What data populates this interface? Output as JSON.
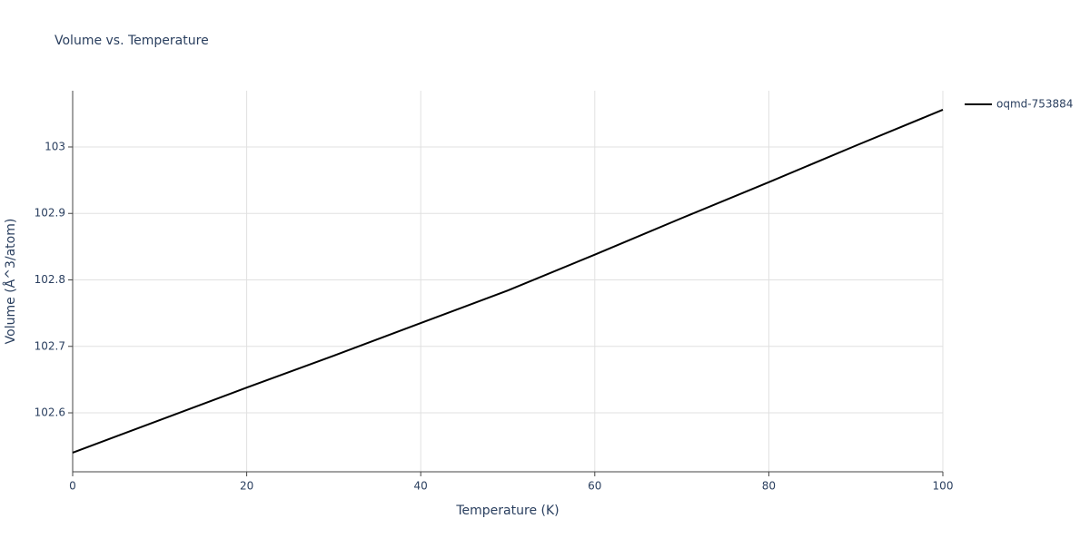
{
  "chart_data": {
    "type": "line",
    "title": "Volume vs. Temperature",
    "x_label": "Temperature (K)",
    "y_label": "Volume (Å^3/atom)",
    "x": [
      0,
      10,
      20,
      30,
      40,
      50,
      60,
      70,
      80,
      90,
      100
    ],
    "series": [
      {
        "name": "oqmd-753884",
        "color": "#000000",
        "values": [
          102.54,
          102.589,
          102.638,
          102.686,
          102.735,
          102.784,
          102.838,
          102.893,
          102.947,
          103.002,
          103.056
        ]
      }
    ],
    "xlim": [
      0,
      100
    ],
    "xticks": [
      0,
      20,
      40,
      60,
      80,
      100
    ],
    "ylim": [
      102.5113,
      103.0846
    ],
    "yticks": [
      {
        "value": 102.6,
        "label": "102.6"
      },
      {
        "value": 102.7,
        "label": "102.7"
      },
      {
        "value": 102.8,
        "label": "102.8"
      },
      {
        "value": 102.9,
        "label": "102.9"
      },
      {
        "value": 103,
        "label": "103"
      }
    ],
    "grid": true,
    "legend": "right"
  }
}
